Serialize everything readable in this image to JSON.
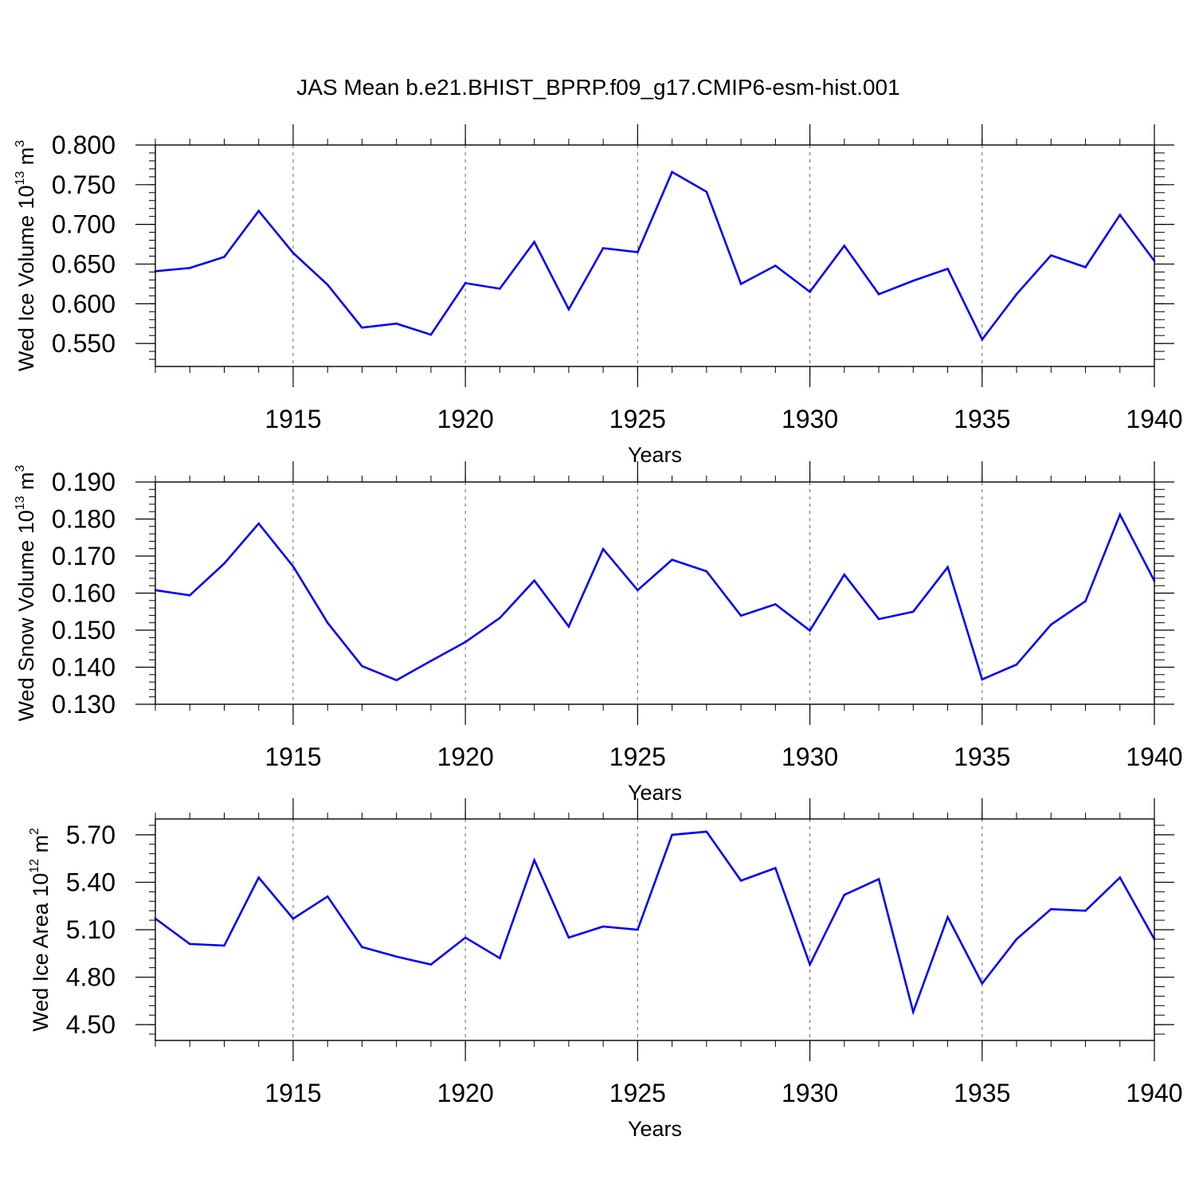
{
  "title": "JAS Mean b.e21.BHIST_BPRP.f09_g17.CMIP6-esm-hist.001",
  "colors": {
    "series": "#0000ff",
    "axis": "#000000",
    "grid": "#666666",
    "background": "#ffffff"
  },
  "chart_data": [
    {
      "type": "line",
      "ylabel": {
        "text": "Wed Ice Volume 10",
        "exp": "13",
        "unit": " m",
        "unit_exp": "3"
      },
      "xlabel": "Years",
      "xlim": [
        1911,
        1940
      ],
      "ylim": [
        0.521,
        0.8
      ],
      "yticks": [
        0.55,
        0.6,
        0.65,
        0.7,
        0.75,
        0.8
      ],
      "ytick_labels": [
        "0.550",
        "0.600",
        "0.650",
        "0.700",
        "0.750",
        "0.800"
      ],
      "xticks": [
        1915,
        1920,
        1925,
        1930,
        1935,
        1940
      ],
      "xtick_labels": [
        "1915",
        "1920",
        "1925",
        "1930",
        "1935",
        "1940"
      ],
      "vgrid": [
        1915,
        1920,
        1925,
        1930,
        1935
      ],
      "grid": "vertical dashed",
      "x": [
        1911,
        1912,
        1913,
        1914,
        1915,
        1916,
        1917,
        1918,
        1919,
        1920,
        1921,
        1922,
        1923,
        1924,
        1925,
        1926,
        1927,
        1928,
        1929,
        1930,
        1931,
        1932,
        1933,
        1934,
        1935,
        1936,
        1937,
        1938,
        1939,
        1940
      ],
      "values": [
        0.641,
        0.645,
        0.659,
        0.717,
        0.664,
        0.624,
        0.57,
        0.575,
        0.561,
        0.626,
        0.619,
        0.678,
        0.593,
        0.67,
        0.665,
        0.766,
        0.741,
        0.625,
        0.648,
        0.615,
        0.673,
        0.612,
        0.629,
        0.644,
        0.555,
        0.612,
        0.661,
        0.646,
        0.712,
        0.654
      ]
    },
    {
      "type": "line",
      "ylabel": {
        "text": "Wed Snow Volume 10",
        "exp": "13",
        "unit": " m",
        "unit_exp": "3"
      },
      "xlabel": "Years",
      "xlim": [
        1911,
        1940
      ],
      "ylim": [
        0.13,
        0.19
      ],
      "yticks": [
        0.13,
        0.14,
        0.15,
        0.16,
        0.17,
        0.18,
        0.19
      ],
      "ytick_labels": [
        "0.130",
        "0.140",
        "0.150",
        "0.160",
        "0.170",
        "0.180",
        "0.190"
      ],
      "xticks": [
        1915,
        1920,
        1925,
        1930,
        1935,
        1940
      ],
      "xtick_labels": [
        "1915",
        "1920",
        "1925",
        "1930",
        "1935",
        "1940"
      ],
      "vgrid": [
        1915,
        1920,
        1925,
        1930,
        1935
      ],
      "grid": "vertical dashed",
      "x": [
        1911,
        1912,
        1913,
        1914,
        1915,
        1916,
        1917,
        1918,
        1919,
        1920,
        1921,
        1922,
        1923,
        1924,
        1925,
        1926,
        1927,
        1928,
        1929,
        1930,
        1931,
        1932,
        1933,
        1934,
        1935,
        1936,
        1937,
        1938,
        1939,
        1940
      ],
      "values": [
        0.1608,
        0.1594,
        0.168,
        0.1788,
        0.1672,
        0.152,
        0.1403,
        0.1365,
        0.1417,
        0.1468,
        0.1533,
        0.1634,
        0.151,
        0.1719,
        0.1608,
        0.169,
        0.1659,
        0.1539,
        0.157,
        0.1499,
        0.165,
        0.153,
        0.155,
        0.167,
        0.1367,
        0.1407,
        0.1515,
        0.1578,
        0.1812,
        0.1633
      ]
    },
    {
      "type": "line",
      "ylabel": {
        "text": "Wed Ice Area 10",
        "exp": "12",
        "unit": " m",
        "unit_exp": "2"
      },
      "xlabel": "Years",
      "xlim": [
        1911,
        1940
      ],
      "ylim": [
        4.4,
        5.8
      ],
      "yticks": [
        4.5,
        4.8,
        5.1,
        5.4,
        5.7
      ],
      "ytick_labels": [
        "4.50",
        "4.80",
        "5.10",
        "5.40",
        "5.70"
      ],
      "xticks": [
        1915,
        1920,
        1925,
        1930,
        1935,
        1940
      ],
      "xtick_labels": [
        "1915",
        "1920",
        "1925",
        "1930",
        "1935",
        "1940"
      ],
      "vgrid": [
        1915,
        1920,
        1925,
        1930,
        1935
      ],
      "grid": "vertical dashed",
      "x": [
        1911,
        1912,
        1913,
        1914,
        1915,
        1916,
        1917,
        1918,
        1919,
        1920,
        1921,
        1922,
        1923,
        1924,
        1925,
        1926,
        1927,
        1928,
        1929,
        1930,
        1931,
        1932,
        1933,
        1934,
        1935,
        1936,
        1937,
        1938,
        1939,
        1940
      ],
      "values": [
        5.17,
        5.01,
        5.0,
        5.43,
        5.17,
        5.31,
        4.99,
        4.93,
        4.88,
        5.05,
        4.92,
        5.54,
        5.05,
        5.12,
        5.1,
        5.7,
        5.72,
        5.41,
        5.49,
        4.88,
        5.32,
        5.42,
        4.58,
        5.18,
        4.76,
        5.04,
        5.23,
        5.22,
        5.43,
        5.04
      ]
    }
  ]
}
